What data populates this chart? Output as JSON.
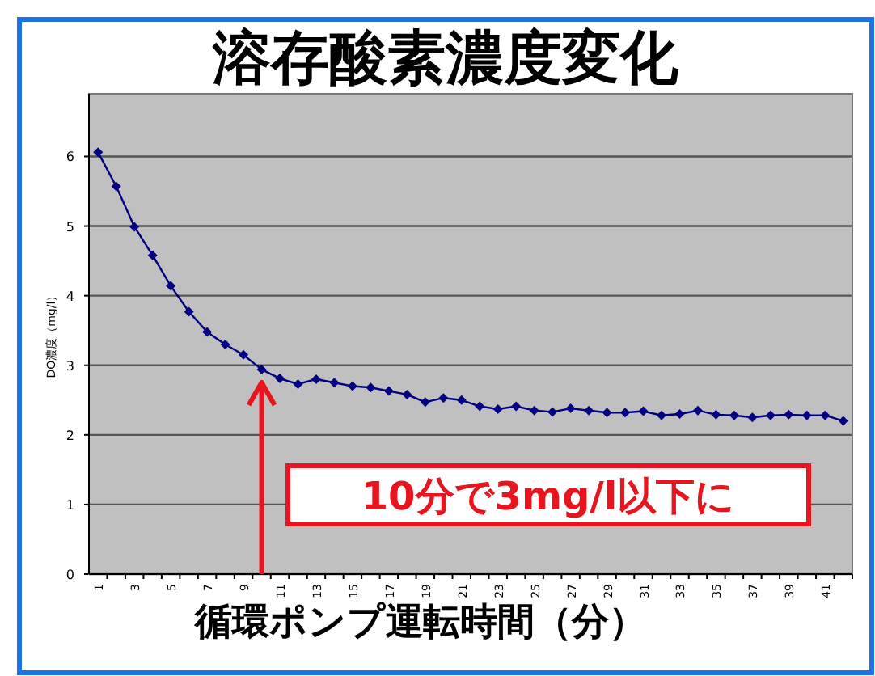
{
  "chart_data": {
    "type": "line",
    "title": "溶存酸素濃度変化",
    "xlabel": "循環ポンプ運転時間（分）",
    "ylabel": "DO濃度（mg/l）",
    "categories": [
      "1",
      null,
      "3",
      null,
      "5",
      null,
      "7",
      null,
      "9",
      null,
      "11",
      null,
      "13",
      null,
      "15",
      null,
      "17",
      null,
      "19",
      null,
      "21",
      null,
      "23",
      null,
      "25",
      null,
      "27",
      null,
      "29",
      null,
      "31",
      null,
      "33",
      null,
      "35",
      null,
      "37",
      null,
      "39",
      null,
      "41",
      null
    ],
    "series": [
      {
        "color": "#000080",
        "values": [
          6.06,
          5.57,
          4.99,
          4.58,
          4.14,
          3.77,
          3.48,
          3.3,
          3.15,
          2.94,
          2.81,
          2.73,
          2.8,
          2.75,
          2.7,
          2.68,
          2.63,
          2.58,
          2.47,
          2.53,
          2.5,
          2.41,
          2.37,
          2.41,
          2.35,
          2.33,
          2.38,
          2.35,
          2.32,
          2.32,
          2.34,
          2.28,
          2.3,
          2.35,
          2.29,
          2.28,
          2.25,
          2.28,
          2.29,
          2.28,
          2.28,
          2.2
        ]
      }
    ],
    "ylim": [
      0,
      6.9
    ],
    "yticks": [
      0,
      1,
      2,
      3,
      4,
      5,
      6
    ],
    "grid": "y",
    "marker": "diamond",
    "line_style": "solid",
    "annotations": [
      "10分で3mg/l以下に"
    ]
  }
}
